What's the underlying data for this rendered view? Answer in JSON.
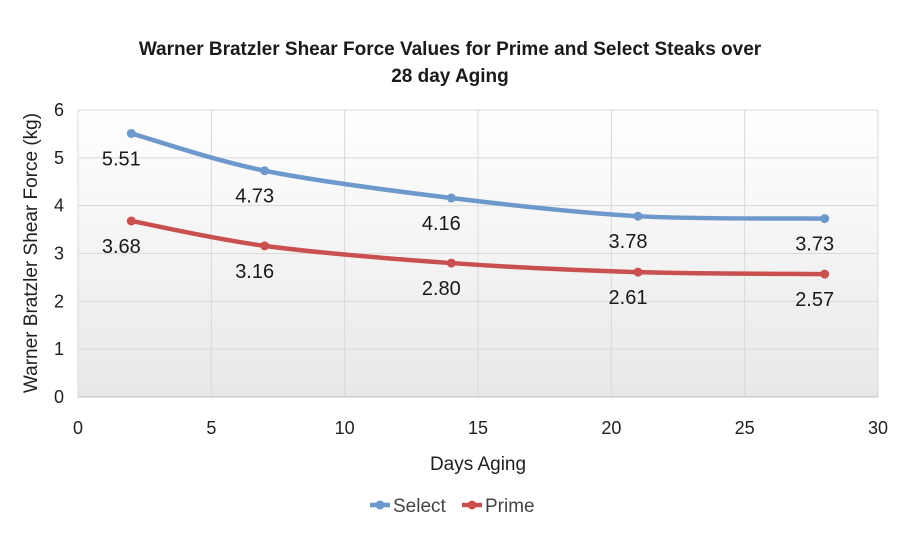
{
  "chart_data": {
    "type": "line",
    "title_lines": [
      "Warner Bratzler Shear Force Values for Prime and Select Steaks over",
      "28 day Aging"
    ],
    "xlabel": "Days Aging",
    "ylabel": "Warner Bratzler Shear Force (kg)",
    "xlim": [
      0,
      30
    ],
    "ylim": [
      0,
      6
    ],
    "x_ticks": [
      0,
      5,
      10,
      15,
      20,
      25,
      30
    ],
    "y_ticks": [
      0,
      1,
      2,
      3,
      4,
      5,
      6
    ],
    "grid": true,
    "legend_position": "bottom",
    "x": [
      2,
      7,
      14,
      21,
      28
    ],
    "series": [
      {
        "name": "Select",
        "color": "#6d98cb",
        "values": [
          5.51,
          4.73,
          4.16,
          3.78,
          3.73
        ],
        "labels": [
          "5.51",
          "4.73",
          "4.16",
          "3.78",
          "3.73"
        ]
      },
      {
        "name": "Prime",
        "color": "#c9504e",
        "values": [
          3.68,
          3.16,
          2.8,
          2.61,
          2.57
        ],
        "labels": [
          "3.68",
          "3.16",
          "2.80",
          "2.61",
          "2.57"
        ]
      }
    ]
  }
}
